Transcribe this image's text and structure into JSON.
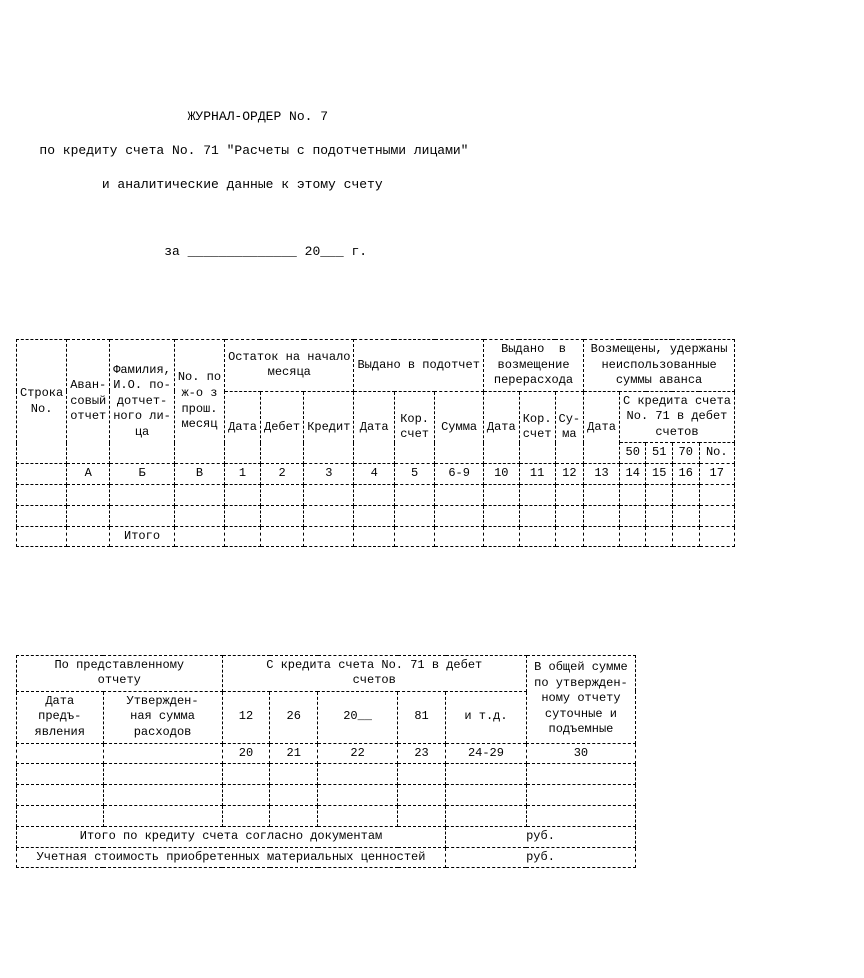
{
  "header": {
    "line1": "                      ЖУРНАЛ-ОРДЕР No. 7",
    "line2": "   по кредиту счета No. 71 \"Расчеты с подотчетными лицами\"",
    "line3": "           и аналитические данные к этому счету",
    "line4": "                   за ______________ 20___ г."
  },
  "table1": {
    "headers": {
      "c1": "Строка\nNo.",
      "c2": "Аван-\nсовый\nотчет",
      "c3": "Фамилия,\nИ.О. по-\nдотчет-\nного ли-\nца",
      "c4": "No. по\nж-о з\nпрош.\nмесяц",
      "g_ost": "Остаток на начало\nмесяца",
      "g_vyd": "Выдано в подотчет",
      "g_vozm": "Выдано  в\nвозмещение\nперерасхода",
      "g_neisp": "Возмещены, удержаны\nнеиспользованные\nсуммы аванса",
      "s_data": "Дата",
      "s_debet": "Дебет",
      "s_kredit": "Кредит",
      "s_kor": "Кор.\nсчет",
      "s_kor2": "Кор.\nсчет",
      "s_sum": "Сумма",
      "s_sum2": "Су-\nма",
      "s_sk71": "С кредита счета\nNo. 71 в дебет\nсчетов",
      "s_50": "50",
      "s_51": "51",
      "s_70": "70",
      "s_no": "No."
    },
    "numrow": [
      "",
      "А",
      "Б",
      "В",
      "1",
      "2",
      "3",
      "4",
      "5",
      "6-9",
      "10",
      "11",
      "12",
      "13",
      "14",
      "15",
      "16",
      "17"
    ],
    "itogo": "Итого"
  },
  "table2": {
    "headers": {
      "g_pred": "По представленному\nотчету",
      "g_sk71": "С кредита счета No. 71 в дебет\nсчетов",
      "g_vob": "В общей сумме\nпо утвержден-\nному отчету\nсуточные и\nподъемные",
      "s_data": "Дата\nпредъ-\nявления",
      "s_utv": "Утвержден-\nная сумма\nрасходов",
      "s_12": "12",
      "s_26": "26",
      "s_20x": "20__",
      "s_81": "81",
      "s_itd": "и т.д."
    },
    "numrow": [
      "",
      "20",
      "21",
      "22",
      "23",
      "24-29",
      "30"
    ],
    "footer1_label": "Итого по кредиту счета согласно документам",
    "footer1_unit": "руб.",
    "footer2_label": "Учетная стоимость приобретенных материальных ценностей",
    "footer2_unit": "руб."
  }
}
